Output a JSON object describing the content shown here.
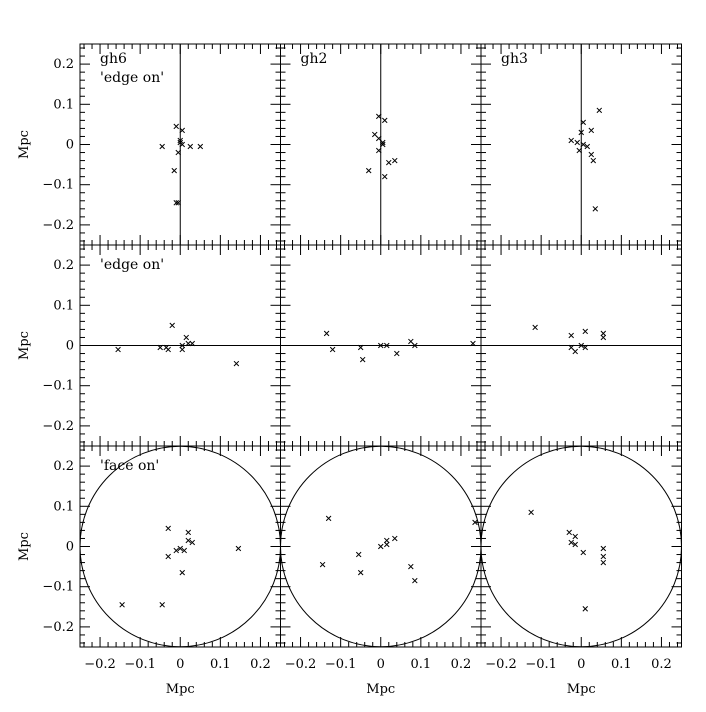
{
  "chart_data": {
    "type": "scatter",
    "layout": {
      "rows": 3,
      "cols": 3
    },
    "xlim": [
      -0.25,
      0.25
    ],
    "ylim": [
      -0.25,
      0.25
    ],
    "x_ticks": [
      -0.2,
      -0.1,
      0,
      0.1,
      0.2
    ],
    "x_tick_labels": [
      "−0.2",
      "−0.1",
      "0",
      "0.1",
      "0.2"
    ],
    "y_ticks": [
      -0.2,
      -0.1,
      0,
      0.1,
      0.2
    ],
    "y_tick_labels": [
      "−0.2",
      "−0.1",
      "0",
      "0.1",
      "0.2"
    ],
    "xlabel": "Mpc",
    "ylabel": "Mpc",
    "marker": "x",
    "columns": [
      {
        "name": "gh6"
      },
      {
        "name": "gh2"
      },
      {
        "name": "gh3"
      }
    ],
    "rows": [
      {
        "label": "'edge on'",
        "reference": "vertical-line"
      },
      {
        "label": "'edge on'",
        "reference": "horizontal-line"
      },
      {
        "label": "'face on'",
        "reference": "circle",
        "circle_radius": 0.25
      }
    ],
    "panels": [
      {
        "row": 0,
        "col": 0,
        "points": [
          [
            -0.045,
            -0.005
          ],
          [
            -0.01,
            0.045
          ],
          [
            0.005,
            0.035
          ],
          [
            0.0,
            0.01
          ],
          [
            0.0,
            0.005
          ],
          [
            0.005,
            0.0
          ],
          [
            -0.005,
            -0.02
          ],
          [
            0.025,
            -0.005
          ],
          [
            0.05,
            -0.005
          ],
          [
            -0.015,
            -0.065
          ],
          [
            -0.01,
            -0.145
          ],
          [
            -0.005,
            -0.145
          ]
        ]
      },
      {
        "row": 0,
        "col": 1,
        "points": [
          [
            -0.005,
            0.07
          ],
          [
            0.01,
            0.06
          ],
          [
            -0.015,
            0.025
          ],
          [
            -0.005,
            0.015
          ],
          [
            0.005,
            0.005
          ],
          [
            0.005,
            0.0
          ],
          [
            -0.005,
            -0.015
          ],
          [
            0.02,
            -0.045
          ],
          [
            0.035,
            -0.04
          ],
          [
            -0.03,
            -0.065
          ],
          [
            0.01,
            -0.08
          ]
        ]
      },
      {
        "row": 0,
        "col": 2,
        "points": [
          [
            0.045,
            0.085
          ],
          [
            0.005,
            0.055
          ],
          [
            0.025,
            0.035
          ],
          [
            0.0,
            0.03
          ],
          [
            -0.025,
            0.01
          ],
          [
            -0.01,
            0.005
          ],
          [
            0.005,
            0.0
          ],
          [
            0.015,
            -0.005
          ],
          [
            -0.005,
            -0.015
          ],
          [
            0.025,
            -0.025
          ],
          [
            0.03,
            -0.04
          ],
          [
            0.035,
            -0.16
          ]
        ]
      },
      {
        "row": 1,
        "col": 0,
        "points": [
          [
            -0.155,
            -0.01
          ],
          [
            -0.05,
            -0.005
          ],
          [
            -0.035,
            -0.005
          ],
          [
            -0.03,
            -0.01
          ],
          [
            -0.02,
            0.05
          ],
          [
            0.005,
            0.0
          ],
          [
            0.005,
            -0.01
          ],
          [
            0.015,
            0.02
          ],
          [
            0.02,
            0.005
          ],
          [
            0.03,
            0.005
          ],
          [
            0.14,
            -0.045
          ]
        ]
      },
      {
        "row": 1,
        "col": 1,
        "points": [
          [
            -0.135,
            0.03
          ],
          [
            -0.12,
            -0.01
          ],
          [
            -0.05,
            -0.005
          ],
          [
            -0.045,
            -0.035
          ],
          [
            0.0,
            0.0
          ],
          [
            0.015,
            0.0
          ],
          [
            0.04,
            -0.02
          ],
          [
            0.075,
            0.01
          ],
          [
            0.085,
            0.0
          ],
          [
            0.23,
            0.005
          ]
        ]
      },
      {
        "row": 1,
        "col": 2,
        "points": [
          [
            -0.115,
            0.045
          ],
          [
            -0.025,
            0.025
          ],
          [
            -0.025,
            -0.005
          ],
          [
            -0.015,
            -0.015
          ],
          [
            0.0,
            0.0
          ],
          [
            0.01,
            0.035
          ],
          [
            0.01,
            -0.005
          ],
          [
            0.055,
            0.03
          ],
          [
            0.055,
            0.02
          ]
        ]
      },
      {
        "row": 2,
        "col": 0,
        "points": [
          [
            -0.03,
            0.045
          ],
          [
            -0.03,
            -0.025
          ],
          [
            -0.01,
            -0.01
          ],
          [
            0.0,
            -0.005
          ],
          [
            0.01,
            -0.01
          ],
          [
            0.02,
            0.035
          ],
          [
            0.02,
            0.015
          ],
          [
            0.03,
            0.01
          ],
          [
            0.005,
            -0.065
          ],
          [
            0.145,
            -0.005
          ],
          [
            -0.045,
            -0.145
          ],
          [
            -0.145,
            -0.145
          ]
        ]
      },
      {
        "row": 2,
        "col": 1,
        "points": [
          [
            -0.13,
            0.07
          ],
          [
            -0.145,
            -0.045
          ],
          [
            -0.055,
            -0.02
          ],
          [
            -0.05,
            -0.065
          ],
          [
            0.0,
            0.0
          ],
          [
            0.015,
            0.015
          ],
          [
            0.015,
            0.005
          ],
          [
            0.035,
            0.02
          ],
          [
            0.075,
            -0.05
          ],
          [
            0.085,
            -0.085
          ],
          [
            0.235,
            0.06
          ]
        ]
      },
      {
        "row": 2,
        "col": 2,
        "points": [
          [
            -0.125,
            0.085
          ],
          [
            -0.03,
            0.035
          ],
          [
            -0.015,
            0.025
          ],
          [
            -0.025,
            0.01
          ],
          [
            -0.015,
            0.005
          ],
          [
            0.005,
            -0.015
          ],
          [
            0.055,
            -0.005
          ],
          [
            0.055,
            -0.025
          ],
          [
            0.055,
            -0.04
          ],
          [
            0.01,
            -0.155
          ]
        ]
      }
    ]
  }
}
